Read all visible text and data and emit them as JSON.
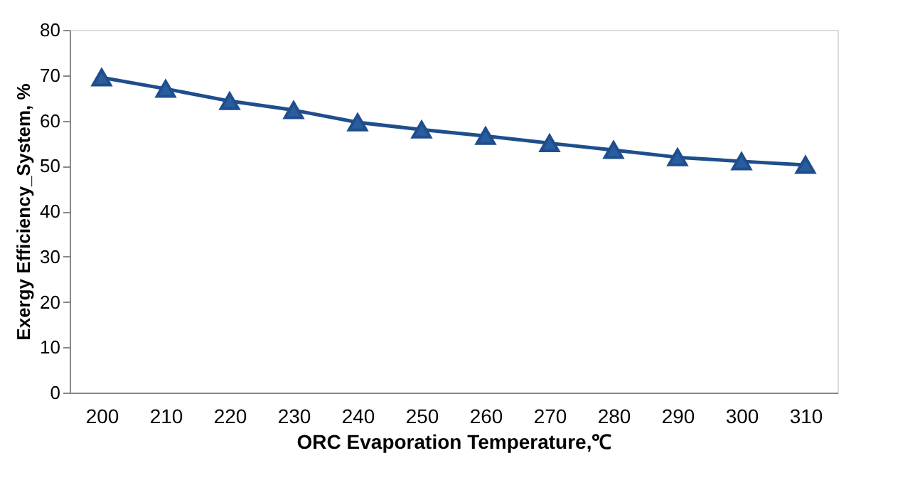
{
  "chart_data": {
    "type": "line",
    "xlabel": "ORC Evaporation Temperature,℃",
    "ylabel": "Exergy Efficiency_System, %",
    "categories": [
      "200",
      "210",
      "220",
      "230",
      "240",
      "250",
      "260",
      "270",
      "280",
      "290",
      "300",
      "310"
    ],
    "series": [
      {
        "color": "#1f4e8c",
        "values": [
          69.5,
          67,
          64.3,
          62.3,
          59.6,
          58,
          56.6,
          55,
          53.5,
          51.9,
          51,
          50.2
        ]
      }
    ],
    "ylim": [
      0,
      80
    ],
    "yticks": [
      0,
      10,
      20,
      30,
      40,
      50,
      60,
      70,
      80
    ],
    "grid": false,
    "marker": "triangle",
    "line_style": "solid"
  }
}
